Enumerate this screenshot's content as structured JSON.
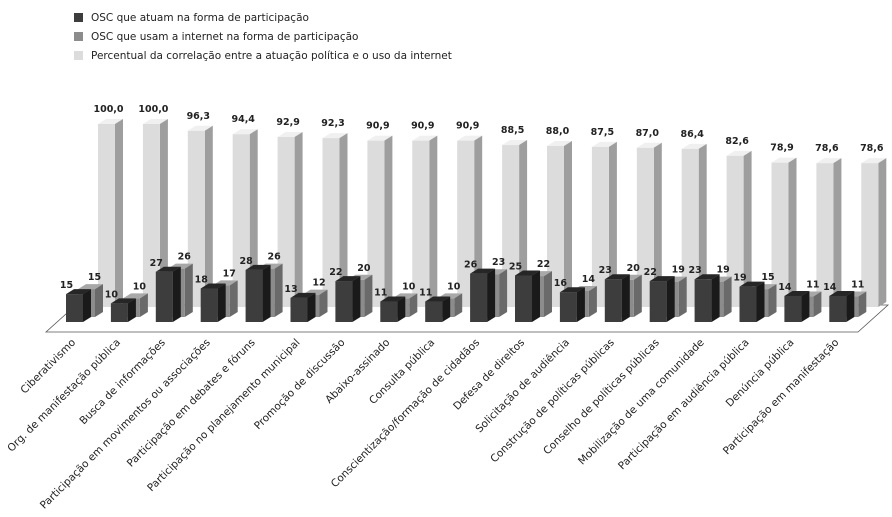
{
  "chart_data": {
    "type": "bar",
    "categories": [
      "Ciberativismo",
      "Org. de manifestação pública",
      "Busca de informações",
      "Participação em movimentos ou associações",
      "Participação em debates e fóruns",
      "Participação no planejamento municipal",
      "Promoção de discussão",
      "Abaixo-assinado",
      "Consulta pública",
      "Conscientização/formação de cidadãos",
      "Defesa de direitos",
      "Solicitação de audiência",
      "Construção de políticas públicas",
      "Conselho de políticas públicas",
      "Mobilização de uma comunidade",
      "Participação em audiência pública",
      "Denúncia pública",
      "Participação em manifestação"
    ],
    "series": [
      {
        "name": "OSC que atuam na forma de participação",
        "values": [
          15,
          10,
          27,
          18,
          28,
          13,
          22,
          11,
          11,
          26,
          25,
          16,
          23,
          22,
          23,
          19,
          14,
          14
        ],
        "labels": [
          "15",
          "10",
          "27",
          "18",
          "28",
          "13",
          "22",
          "11",
          "11",
          "26",
          "25",
          "16",
          "23",
          "22",
          "23",
          "19",
          "14",
          "14"
        ],
        "color": "#3d3d3d"
      },
      {
        "name": "OSC que usam a internet na forma de participação",
        "values": [
          15,
          10,
          26,
          17,
          26,
          12,
          20,
          10,
          10,
          23,
          22,
          14,
          20,
          19,
          19,
          15,
          11,
          11
        ],
        "labels": [
          "15",
          "10",
          "26",
          "17",
          "26",
          "12",
          "20",
          "10",
          "10",
          "23",
          "22",
          "14",
          "20",
          "19",
          "19",
          "15",
          "11",
          "11"
        ],
        "color": "#8c8c8c"
      },
      {
        "name": "Percentual da correlação entre a atuação política e o uso da internet",
        "values": [
          100.0,
          100.0,
          96.3,
          94.4,
          92.9,
          92.3,
          90.9,
          90.9,
          90.9,
          88.5,
          88.0,
          87.5,
          87.0,
          86.4,
          82.6,
          78.9,
          78.6,
          78.6
        ],
        "labels": [
          "100,0",
          "100,0",
          "96,3",
          "94,4",
          "92,9",
          "92,3",
          "90,9",
          "90,9",
          "90,9",
          "88,5",
          "88,0",
          "87,5",
          "87,0",
          "86,4",
          "82,6",
          "78,9",
          "78,6",
          "78,6"
        ],
        "color": "#dcdcdc"
      }
    ],
    "legend_position": "top-left",
    "grid": false,
    "style": "3d-clustered-columns"
  }
}
